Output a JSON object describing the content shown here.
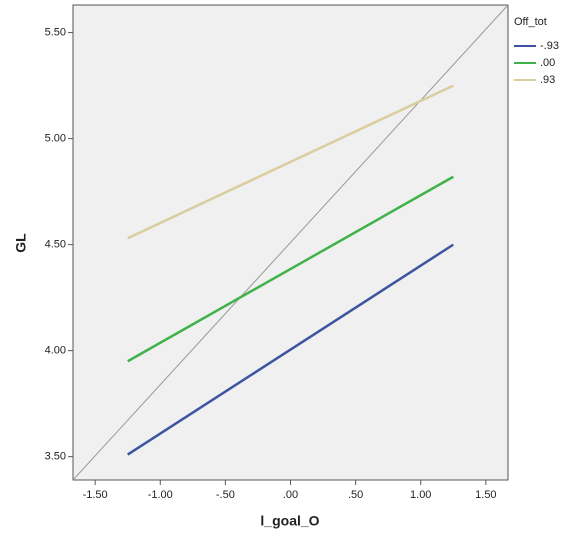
{
  "chart_data": {
    "type": "line",
    "x_label": "l_goal_O",
    "y_label": "GL",
    "x": [
      -1.25,
      1.25
    ],
    "series": [
      {
        "name": "-.93",
        "color": "#3d55a0",
        "values": [
          3.51,
          4.5
        ]
      },
      {
        "name": ".00",
        "color": "#3fb34a",
        "values": [
          3.95,
          4.82
        ]
      },
      {
        "name": ".93",
        "color": "#d8cea0",
        "values": [
          4.53,
          5.25
        ]
      }
    ],
    "legend_title": "Off_tot",
    "legend": "right",
    "xlim": [
      -1.67,
      1.67
    ],
    "xticks": [
      {
        "value": -1.5,
        "label": "-1.50"
      },
      {
        "value": -1,
        "label": "-1.00"
      },
      {
        "value": -0.5,
        "label": "-.50"
      },
      {
        "value": 0,
        "label": ".00"
      },
      {
        "value": 0.5,
        "label": ".50"
      },
      {
        "value": 1,
        "label": "1.00"
      },
      {
        "value": 1.5,
        "label": "1.50"
      }
    ],
    "ylim": [
      3.39,
      5.63
    ],
    "yticks": [
      {
        "value": 3.5,
        "label": "3.50"
      },
      {
        "value": 4,
        "label": "4.00"
      },
      {
        "value": 4.5,
        "label": "4.50"
      },
      {
        "value": 5,
        "label": "5.00"
      },
      {
        "value": 5.5,
        "label": "5.50"
      }
    ]
  }
}
